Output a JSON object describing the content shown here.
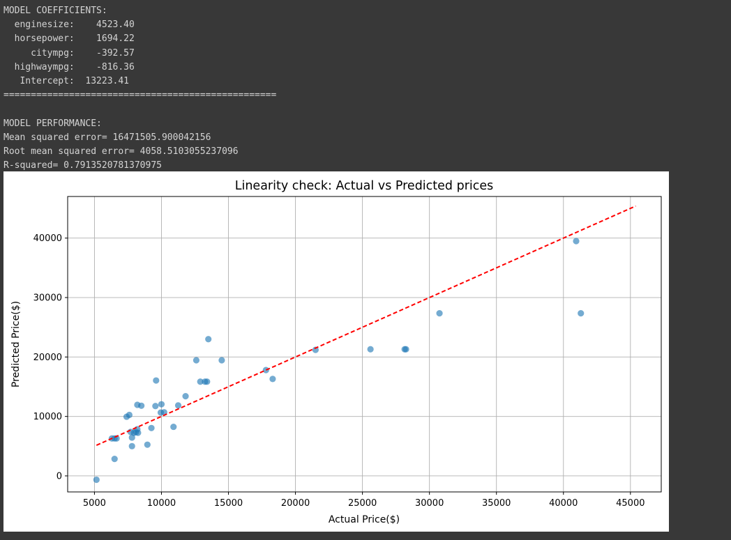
{
  "console": {
    "lines": [
      "MODEL COEFFICIENTS:",
      "  enginesize:    4523.40",
      "  horsepower:    1694.22",
      "     citympg:    -392.57",
      "  highwaympg:    -816.36",
      "   Intercept:  13223.41",
      "==================================================",
      "",
      "MODEL PERFORMANCE:",
      "Mean squared error= 16471505.900042156",
      "Root mean squared error= 4058.5103055237096",
      "R-squared= 0.7913520781370975"
    ]
  },
  "chart_data": {
    "type": "scatter",
    "title": "Linearity check: Actual vs Predicted prices",
    "xlabel": "Actual Price($)",
    "ylabel": "Predicted Price($)",
    "xlim": [
      3000,
      47300
    ],
    "ylim": [
      -2700,
      47000
    ],
    "x_ticks": [
      5000,
      10000,
      15000,
      20000,
      25000,
      30000,
      35000,
      40000,
      45000
    ],
    "y_ticks": [
      0,
      10000,
      20000,
      30000,
      40000
    ],
    "grid": true,
    "point_color": "#1f77b4",
    "points": [
      {
        "x": 5150,
        "y": -650
      },
      {
        "x": 6300,
        "y": 6300
      },
      {
        "x": 6500,
        "y": 6300
      },
      {
        "x": 6650,
        "y": 6300
      },
      {
        "x": 6500,
        "y": 2850
      },
      {
        "x": 7400,
        "y": 9950
      },
      {
        "x": 7600,
        "y": 10250
      },
      {
        "x": 7700,
        "y": 7400
      },
      {
        "x": 7800,
        "y": 6450
      },
      {
        "x": 7800,
        "y": 5000
      },
      {
        "x": 7950,
        "y": 7250
      },
      {
        "x": 8100,
        "y": 7350
      },
      {
        "x": 8200,
        "y": 7850
      },
      {
        "x": 8250,
        "y": 7250
      },
      {
        "x": 8200,
        "y": 11950
      },
      {
        "x": 8500,
        "y": 11800
      },
      {
        "x": 8950,
        "y": 5250
      },
      {
        "x": 9250,
        "y": 8050
      },
      {
        "x": 9550,
        "y": 11750
      },
      {
        "x": 9600,
        "y": 16050
      },
      {
        "x": 9950,
        "y": 10650
      },
      {
        "x": 10000,
        "y": 12050
      },
      {
        "x": 10200,
        "y": 10700
      },
      {
        "x": 10900,
        "y": 8250
      },
      {
        "x": 11250,
        "y": 11850
      },
      {
        "x": 11800,
        "y": 13400
      },
      {
        "x": 12600,
        "y": 19450
      },
      {
        "x": 12900,
        "y": 15850
      },
      {
        "x": 13250,
        "y": 15850
      },
      {
        "x": 13400,
        "y": 15850
      },
      {
        "x": 13500,
        "y": 23000
      },
      {
        "x": 14500,
        "y": 19450
      },
      {
        "x": 17800,
        "y": 17800
      },
      {
        "x": 18300,
        "y": 16300
      },
      {
        "x": 21500,
        "y": 21200
      },
      {
        "x": 25600,
        "y": 21300
      },
      {
        "x": 28150,
        "y": 21300
      },
      {
        "x": 28250,
        "y": 21300
      },
      {
        "x": 30750,
        "y": 27350
      },
      {
        "x": 40950,
        "y": 39500
      },
      {
        "x": 41300,
        "y": 27350
      }
    ],
    "reference_line": {
      "x": [
        5150,
        45400
      ],
      "y": [
        5150,
        45400
      ],
      "color": "#ff0000",
      "style": "dashed"
    }
  }
}
